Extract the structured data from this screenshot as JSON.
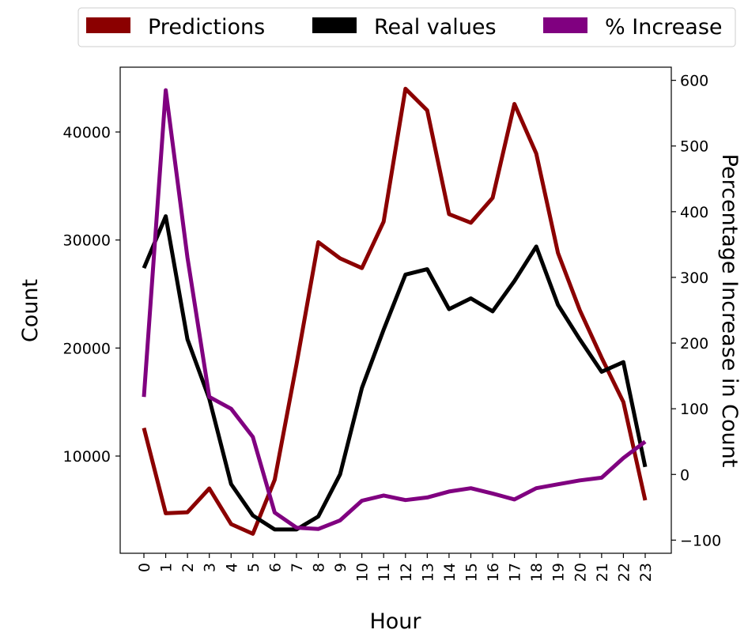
{
  "chart_data": {
    "type": "line",
    "x": [
      "0",
      "1",
      "2",
      "3",
      "4",
      "5",
      "6",
      "7",
      "8",
      "9",
      "10",
      "11",
      "12",
      "13",
      "14",
      "15",
      "16",
      "17",
      "18",
      "19",
      "20",
      "21",
      "22",
      "23"
    ],
    "xlabel": "Hour",
    "ylabel_left": "Count",
    "ylabel_right": "Percentage Increase in Count",
    "ylim_left": [
      1000,
      46000
    ],
    "ylim_right": [
      -120,
      620
    ],
    "yticks_left": [
      10000,
      20000,
      30000,
      40000
    ],
    "yticks_right": [
      -100,
      0,
      100,
      200,
      300,
      400,
      500,
      600
    ],
    "legend_position": "top, above plot",
    "grid": false,
    "series": [
      {
        "name": "Predictions",
        "axis": "left",
        "color": "#8b0000",
        "values": [
          12600,
          4700,
          4800,
          7000,
          3700,
          2800,
          7800,
          18500,
          29800,
          28300,
          27400,
          31700,
          44000,
          42000,
          32400,
          31600,
          33900,
          42600,
          38000,
          28800,
          23500,
          19100,
          15000,
          5900
        ]
      },
      {
        "name": "Real values",
        "axis": "left",
        "color": "#000000",
        "values": [
          27400,
          32200,
          20800,
          15300,
          7400,
          4500,
          3200,
          3200,
          4400,
          8300,
          16300,
          21700,
          26800,
          27300,
          23600,
          24600,
          23400,
          26200,
          29400,
          24000,
          20800,
          17800,
          18700,
          9000
        ]
      },
      {
        "name": "% Increase",
        "axis": "right",
        "color": "#800080",
        "values": [
          118,
          585,
          330,
          118,
          100,
          57,
          -58,
          -81,
          -83,
          -70,
          -40,
          -32,
          -39,
          -35,
          -26,
          -21,
          -29,
          -38,
          -21,
          -15,
          -9,
          -5,
          25,
          50
        ]
      }
    ]
  }
}
